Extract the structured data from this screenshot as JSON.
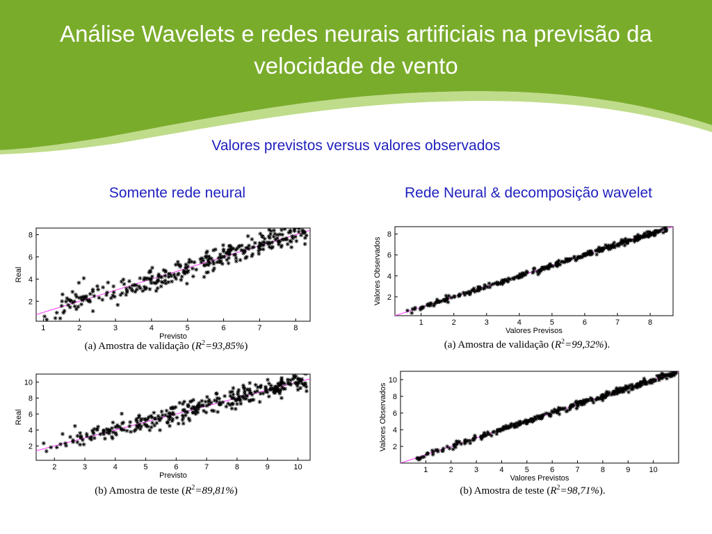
{
  "slide": {
    "title": "Análise Wavelets e redes neurais artificiais na previsão da velocidade de vento",
    "subtitle": "Valores previstos versus valores observados",
    "left_column": "Somente rede neural",
    "right_column": "Rede Neural & decomposição wavelet",
    "colors": {
      "header_green": "#7aac2c",
      "header_light": "#a8cc6a",
      "heading_blue": "#1f1fbf",
      "fit_line": "#ff33ff"
    }
  },
  "chart_data": [
    {
      "id": "a-left",
      "type": "scatter",
      "xlabel": "Previsto",
      "ylabel": "Real",
      "caption_prefix": "(a)   Amostra de validação (",
      "r2_label": "R",
      "r2_sup": "2",
      "r2_value": "=93,85%",
      "caption_suffix": ")",
      "xlim": [
        0.8,
        8.4
      ],
      "ylim": [
        0.2,
        8.6
      ],
      "xticks": [
        1,
        2,
        3,
        4,
        5,
        6,
        7,
        8
      ],
      "yticks": [
        2,
        4,
        6,
        8
      ],
      "fit_line": [
        [
          0.8,
          0.8
        ],
        [
          8.4,
          8.4
        ]
      ],
      "noise": 0.55,
      "n_points": 320,
      "seed": 11,
      "x_range": [
        1.0,
        8.3
      ]
    },
    {
      "id": "a-right",
      "type": "scatter",
      "xlabel": "Valores Previsos",
      "ylabel": "Valores Observados",
      "caption_prefix": "(a)   Amostra de validação (",
      "r2_label": "R",
      "r2_sup": "2",
      "r2_value": "=99,32%",
      "caption_suffix": ").",
      "xlim": [
        0.2,
        8.7
      ],
      "ylim": [
        0.2,
        8.7
      ],
      "xticks": [
        1,
        2,
        3,
        4,
        5,
        6,
        7,
        8
      ],
      "yticks": [
        2,
        4,
        6,
        8
      ],
      "fit_line": [
        [
          0.2,
          0.2
        ],
        [
          8.7,
          8.7
        ]
      ],
      "noise": 0.12,
      "n_points": 340,
      "seed": 23,
      "x_range": [
        0.4,
        8.5
      ]
    },
    {
      "id": "b-left",
      "type": "scatter",
      "xlabel": "Previsto",
      "ylabel": "Real",
      "caption_prefix": "(b)   Amostra de teste (",
      "r2_label": "R",
      "r2_sup": "2",
      "r2_value": "=89,81%",
      "caption_suffix": ")",
      "xlim": [
        1.4,
        10.4
      ],
      "ylim": [
        0.2,
        11
      ],
      "xticks": [
        2,
        3,
        4,
        5,
        6,
        7,
        8,
        9,
        10
      ],
      "yticks": [
        2,
        4,
        6,
        8,
        10
      ],
      "fit_line": [
        [
          1.4,
          1.4
        ],
        [
          10.4,
          10.4
        ]
      ],
      "noise": 0.6,
      "n_points": 340,
      "seed": 37,
      "x_range": [
        1.5,
        10.3
      ]
    },
    {
      "id": "b-right",
      "type": "scatter",
      "xlabel": "Valores Previstos",
      "ylabel": "Valores Observados",
      "caption_prefix": "(b)   Amostra de teste (",
      "r2_label": "R",
      "r2_sup": "2",
      "r2_value": "=98,71%",
      "caption_suffix": ").",
      "xlim": [
        0,
        11
      ],
      "ylim": [
        0,
        11
      ],
      "xticks": [
        1,
        2,
        3,
        4,
        5,
        6,
        7,
        8,
        9,
        10
      ],
      "yticks": [
        2,
        4,
        6,
        8,
        10
      ],
      "fit_line": [
        [
          0,
          0
        ],
        [
          11,
          11
        ]
      ],
      "noise": 0.18,
      "n_points": 360,
      "seed": 53,
      "x_range": [
        0.3,
        10.9
      ]
    }
  ]
}
